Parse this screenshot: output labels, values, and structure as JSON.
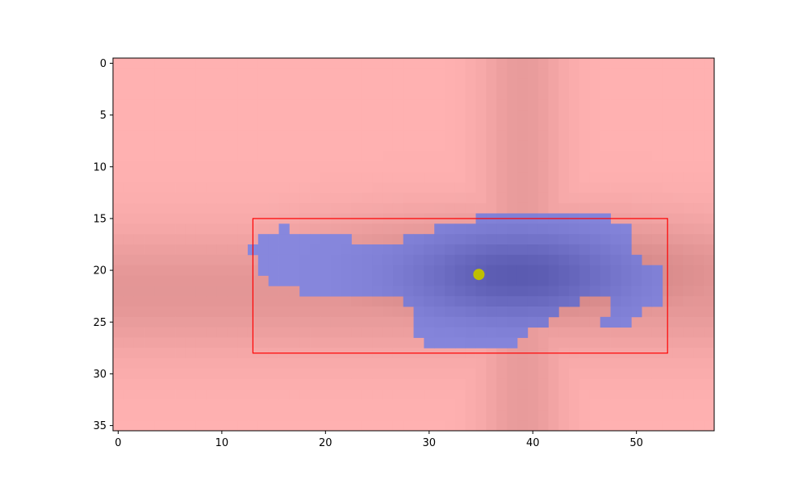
{
  "chart_data": {
    "type": "heatmap",
    "title": "",
    "xlabel": "",
    "ylabel": "",
    "xlim": [
      -0.5,
      57.5
    ],
    "ylim": [
      35.5,
      -0.5
    ],
    "y_axis_inverted": true,
    "x_ticks": [
      0,
      10,
      20,
      30,
      40,
      50
    ],
    "y_ticks": [
      0,
      5,
      10,
      15,
      20,
      25,
      30,
      35
    ],
    "grid": false,
    "legend": "none",
    "colors": {
      "background_light": "#ffb1b1",
      "background_dark": "#cc7f7f",
      "mask": "#8787dd",
      "mask_dark": "#5a5ab0",
      "bounding_box": "#ff0000",
      "center_marker": "#bfbf00"
    },
    "heat_center": {
      "x": 38.5,
      "y": 20.5
    },
    "mask_rows": [
      {
        "y": 15,
        "segments": [
          [
            35,
            47
          ]
        ]
      },
      {
        "y": 16,
        "segments": [
          [
            16,
            16
          ],
          [
            31,
            49
          ]
        ]
      },
      {
        "y": 17,
        "segments": [
          [
            14,
            22
          ],
          [
            28,
            49
          ]
        ]
      },
      {
        "y": 18,
        "segments": [
          [
            13,
            49
          ]
        ]
      },
      {
        "y": 19,
        "segments": [
          [
            14,
            50
          ]
        ]
      },
      {
        "y": 20,
        "segments": [
          [
            14,
            52
          ]
        ]
      },
      {
        "y": 21,
        "segments": [
          [
            15,
            52
          ]
        ]
      },
      {
        "y": 22,
        "segments": [
          [
            18,
            52
          ]
        ]
      },
      {
        "y": 23,
        "segments": [
          [
            28,
            44
          ],
          [
            48,
            52
          ]
        ]
      },
      {
        "y": 24,
        "segments": [
          [
            29,
            42
          ],
          [
            48,
            50
          ]
        ]
      },
      {
        "y": 25,
        "segments": [
          [
            29,
            41
          ],
          [
            47,
            49
          ]
        ]
      },
      {
        "y": 26,
        "segments": [
          [
            29,
            39
          ]
        ]
      },
      {
        "y": 27,
        "segments": [
          [
            30,
            38
          ]
        ]
      }
    ],
    "bounding_box": {
      "x0": 13,
      "y0": 15,
      "x1": 53,
      "y1": 28
    },
    "center_point": {
      "x": 34.8,
      "y": 20.4
    }
  }
}
